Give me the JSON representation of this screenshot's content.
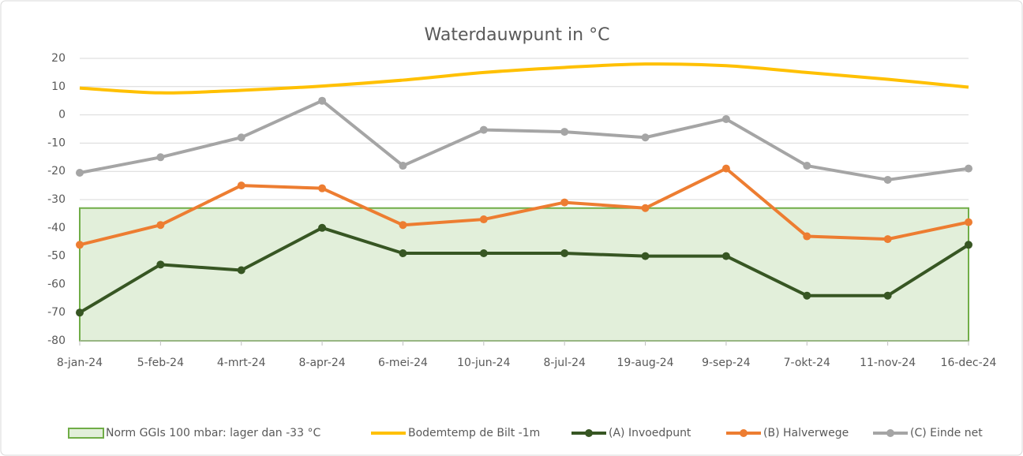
{
  "chart_data": {
    "type": "line",
    "title": "Waterdauwpunt in °C",
    "categories": [
      "8-jan-24",
      "5-feb-24",
      "4-mrt-24",
      "8-apr-24",
      "6-mei-24",
      "10-jun-24",
      "8-jul-24",
      "19-aug-24",
      "9-sep-24",
      "7-okt-24",
      "11-nov-24",
      "16-dec-24"
    ],
    "series": [
      {
        "name": "Norm GGIs 100 mbar: lager dan -33 °C",
        "type": "area",
        "color": "#e2efda",
        "border": "#70ad47",
        "values": [
          -33,
          -33,
          -33,
          -33,
          -33,
          -33,
          -33,
          -33,
          -33,
          -33,
          -33,
          -33
        ]
      },
      {
        "name": "Bodemtemp de Bilt -1m",
        "color": "#ffc000",
        "smooth": true,
        "markers": false,
        "values": [
          9.5,
          7.8,
          8.7,
          10.2,
          12.3,
          15,
          16.8,
          18,
          17.4,
          15,
          12.6,
          9.8
        ]
      },
      {
        "name": "(A)  Invoedpunt",
        "color": "#375623",
        "markers": true,
        "values": [
          -70,
          -53,
          -55,
          -40,
          -49,
          -49,
          -49,
          -50,
          -50,
          -64,
          -64,
          -46
        ]
      },
      {
        "name": "(B) Halverwege",
        "color": "#ed7d31",
        "markers": true,
        "values": [
          -46,
          -39,
          -25,
          -26,
          -39,
          -37,
          -31,
          -33,
          -19,
          -43,
          -44,
          -38
        ]
      },
      {
        "name": "(C) Einde net",
        "color": "#a5a5a5",
        "markers": true,
        "values": [
          -20.5,
          -15,
          -8,
          5,
          -18,
          -5.3,
          -6,
          -8,
          -1.5,
          -18,
          -23,
          -19
        ]
      }
    ],
    "ylim": [
      -80,
      20
    ],
    "yticks": [
      -80,
      -70,
      -60,
      -50,
      -40,
      -30,
      -20,
      -10,
      0,
      10,
      20
    ],
    "grid": true,
    "legend": "bottom"
  }
}
